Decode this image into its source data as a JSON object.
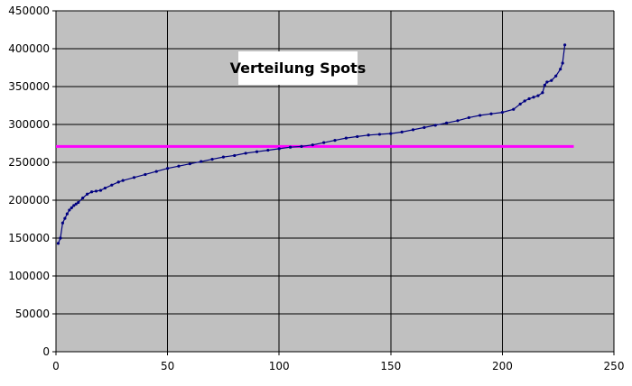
{
  "chart_data": {
    "type": "line",
    "title": "Verteilung Spots",
    "xlabel": "",
    "ylabel": "",
    "xlim": [
      0,
      250
    ],
    "ylim": [
      0,
      450000
    ],
    "x_ticks": [
      0,
      50,
      100,
      150,
      200,
      250
    ],
    "y_ticks": [
      0,
      50000,
      100000,
      150000,
      200000,
      250000,
      300000,
      350000,
      400000,
      450000
    ],
    "grid": true,
    "legend": "none",
    "colors": {
      "plot_background": "#c0c0c0",
      "series": "#000080",
      "reference_line": "#ff00ff",
      "grid": "#000000"
    },
    "series": [
      {
        "x": [
          1,
          2,
          3,
          4,
          5,
          6,
          7,
          8,
          9,
          10,
          12,
          14,
          16,
          18,
          20,
          22,
          25,
          28,
          30,
          35,
          40,
          45,
          50,
          55,
          60,
          65,
          70,
          75,
          80,
          85,
          90,
          95,
          100,
          105,
          110,
          115,
          120,
          125,
          130,
          135,
          140,
          145,
          150,
          155,
          160,
          165,
          170,
          175,
          180,
          185,
          190,
          195,
          200,
          205,
          208,
          210,
          212,
          214,
          216,
          218,
          219,
          220,
          222,
          224,
          226,
          227,
          228
        ],
        "y": [
          143000,
          150000,
          170000,
          176000,
          182000,
          187000,
          190000,
          193000,
          195000,
          197000,
          203000,
          208000,
          211000,
          212000,
          213000,
          216000,
          220000,
          224000,
          226000,
          230000,
          234000,
          238000,
          242000,
          245000,
          248000,
          251000,
          254000,
          257000,
          259000,
          262000,
          264000,
          266000,
          268000,
          270000,
          271000,
          273000,
          276000,
          279000,
          282000,
          284000,
          286000,
          287000,
          288000,
          290000,
          293000,
          296000,
          299000,
          302000,
          305000,
          309000,
          312000,
          314000,
          316000,
          320000,
          327000,
          331000,
          334000,
          336000,
          338000,
          342000,
          352000,
          356000,
          358000,
          364000,
          373000,
          381000,
          405000
        ]
      }
    ],
    "reference_line": {
      "y": 271000,
      "x_start": 0,
      "x_end": 232
    }
  }
}
